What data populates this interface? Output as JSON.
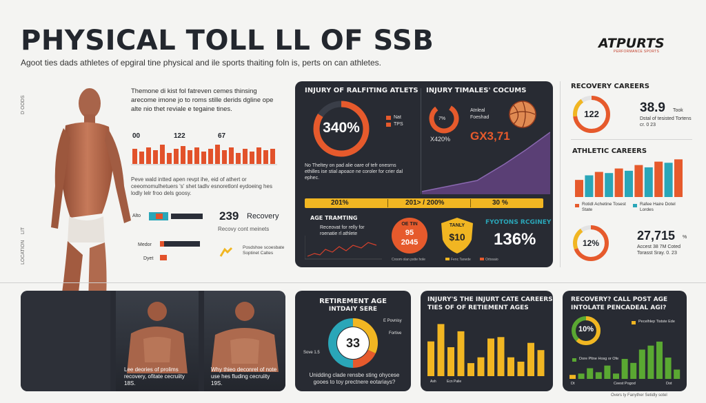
{
  "header": {
    "title": "PHYSICAL TOLL LL OF SSB",
    "subtitle": "Agoot ties dads athletes of epgiral tine physical and ile sports thaiting foln is, perts on can athletes.",
    "brand": "ATPURTS",
    "brand_sub": "PERFORMANCE SPORTS"
  },
  "side_labels": [
    "D OODS",
    "LIT",
    "LOCATION"
  ],
  "left": {
    "intro": "Themone di kist fol fatreven cemes thinsing arecome imone jo to roms stille derids dgline ope alte nio thet reviale e tegaine tines.",
    "chart_numbers": [
      "00",
      "122",
      "67"
    ],
    "paragraph": "Peve wald intted apen revpt ihe, eid of athert or ceeomomulhetuers 's' shet tadlv esnoretlonl eydoeing hes lodly lelr froo dels goosy.",
    "bar_labels": [
      "Alto",
      "Medor",
      "Dyet"
    ],
    "big_number": "239",
    "big_label": "Recovery",
    "big_sub": "Recovy cont meinets",
    "small_caption": "Posdshoe scoesbate Soptinet Caltes"
  },
  "center_panel": {
    "injury_title": "INJURY OF RALFITING ATLETS",
    "injury_value": "340%",
    "legend": [
      "Nat",
      "TPS"
    ],
    "timeline_title": "INJURY TIMALES' COCUMS",
    "timeline_pct": "7%",
    "timeline_pct2": "X420%",
    "timeline_value": "GX3,71",
    "ball_labels": [
      "Atnleal",
      "Foeshad"
    ],
    "body_text": "No Theltey on pad alie oare of tefr onesrns ethilles ise stial apoace ne coroler for crier dal ephec.",
    "band_values": [
      "201%",
      "201> / 200%",
      "30 %"
    ],
    "age_title": "AGE TRAMTING",
    "age_text": "Receovat for relly for roenatie rl athlete",
    "badge1_top": "OE TIN",
    "badge1_mid": "95",
    "badge1_bot": "2045",
    "badge2_top": "TANLY",
    "badge2_val": "$10",
    "right_title": "FYOTONS RCGINEY",
    "right_value": "136%",
    "bottom_legend": [
      "Croom olan pstte hole",
      "Fenc Tanede",
      "Ortssaio"
    ]
  },
  "right_col": {
    "recovery_title": "RECOVERY CAREERS",
    "ring_value": "122",
    "stat_value": "38.9",
    "stat_unit": "Took",
    "stat_text": "Dstal of tesisted Tortens cr. 0 23",
    "athletic_title": "ATHLETIC CAREERS",
    "athletic_values": [
      30,
      38,
      44,
      42,
      50,
      46,
      56,
      52,
      62,
      60,
      66
    ],
    "athletic_legend": [
      "Rotidl Achetine Tosest State",
      "Rafee Haire Dotel Lordes"
    ],
    "ring2_value": "12%",
    "stat2_value": "27,715",
    "stat2_unit": "%",
    "stat2_text": "Accest 38 7M Coted Torasst Sray. 0. 23"
  },
  "bottom": {
    "cap1": "Lee deories of prolims recovery, ofitate cecruiity 18S.",
    "cap2": "Why thieo deconrel of note use hes fluding cecruiity 19S.",
    "retirement_title": "RETIREMENT AGE",
    "retirement_sub": "INTDAIY SERE",
    "donut_value": "33",
    "donut_label_left": "Sove 1.5",
    "donut_label_right": "E Povnisy",
    "donut_legend": "Fortive",
    "retirement_text": "Unidding clade rensbe sting ohycese gooes to toy prectnere eotariays?",
    "bars_title": "INJURY'S THE INJURT CATE CAREERS",
    "bars_sub": "TIES OF OF RETIEMENT AGES",
    "bars_values": [
      48,
      72,
      40,
      62,
      18,
      26,
      52,
      54,
      26,
      20,
      46,
      36
    ],
    "bars_legend": [
      "Ash",
      "Ecn Palie"
    ],
    "post_title": "RECOVERY? CALL POST AGE",
    "post_sub": "INTOLATE PENCADEAL AGI?",
    "post_ring": "10%",
    "post_legend_1": "Pecelhlep Tistste Ede",
    "post_legend_2": "Dore Pltne Hosg or Ofe",
    "post_values": [
      6,
      8,
      16,
      10,
      20,
      8,
      30,
      24,
      44,
      50,
      56,
      32,
      14
    ],
    "post_axis": [
      "Dt",
      "Ceest Pogod",
      "Dot"
    ],
    "footer": "Overs ty Fanyther Setidly sotel"
  },
  "colors": {
    "orange": "#e65a2c",
    "dark": "#282b33",
    "yellow": "#f1b622",
    "teal": "#2aa6b8",
    "green": "#5aa832"
  }
}
